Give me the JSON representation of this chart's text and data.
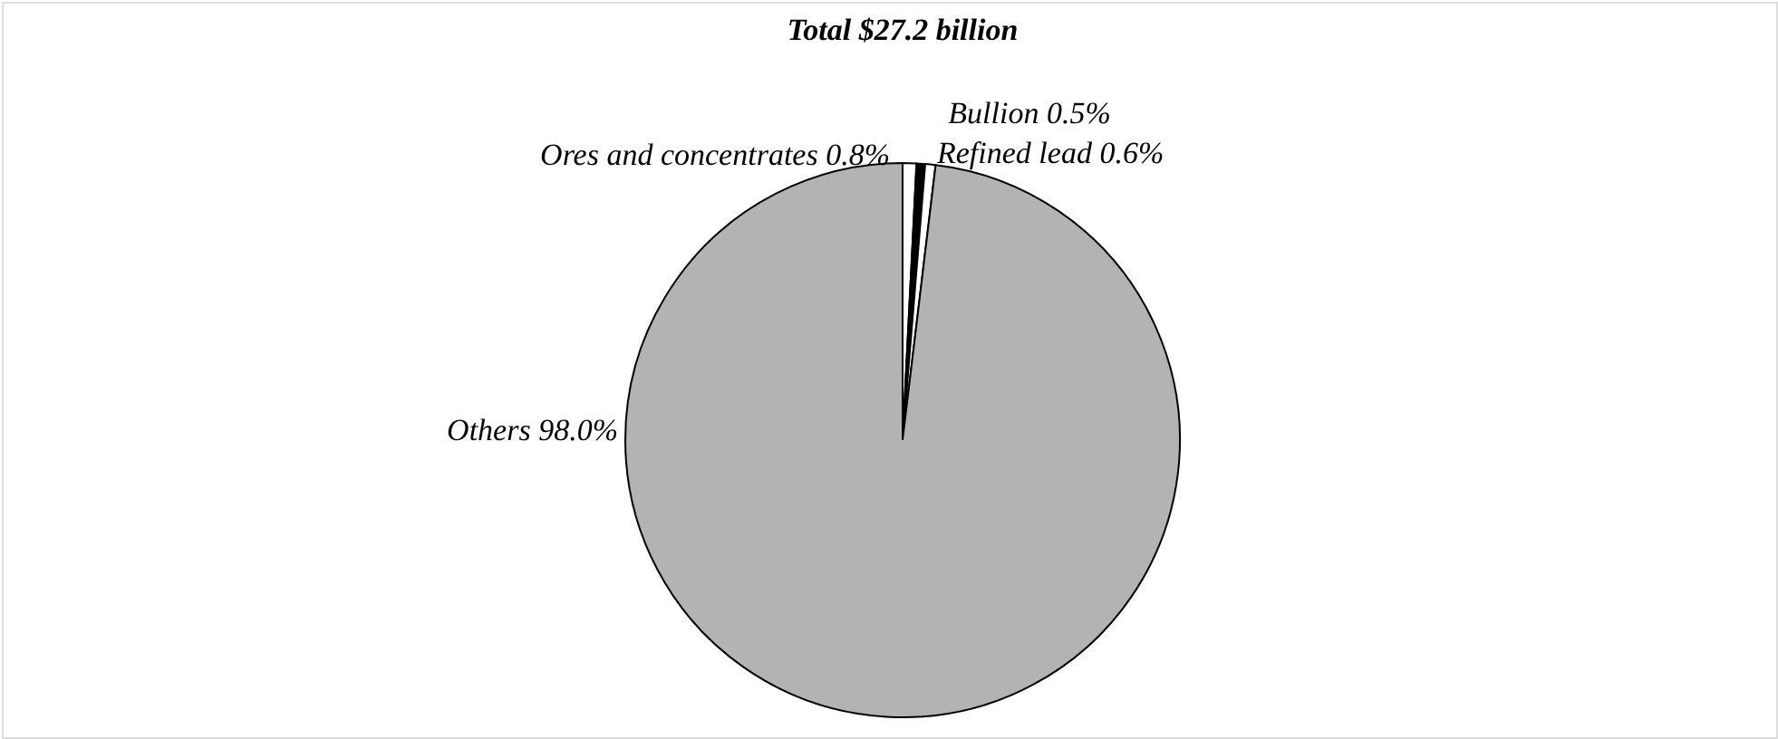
{
  "chart_data": {
    "type": "pie",
    "title": "Total $27.2 billion",
    "categories": [
      "Ores and concentrates 0.8%",
      "Bullion 0.5%",
      "Refined lead 0.6%",
      "Others 98.0%"
    ],
    "values": [
      0.8,
      0.5,
      0.6,
      98.0
    ],
    "colors": [
      "#ffffff",
      "#000000",
      "#ffffff",
      "#b3b3b3"
    ]
  }
}
